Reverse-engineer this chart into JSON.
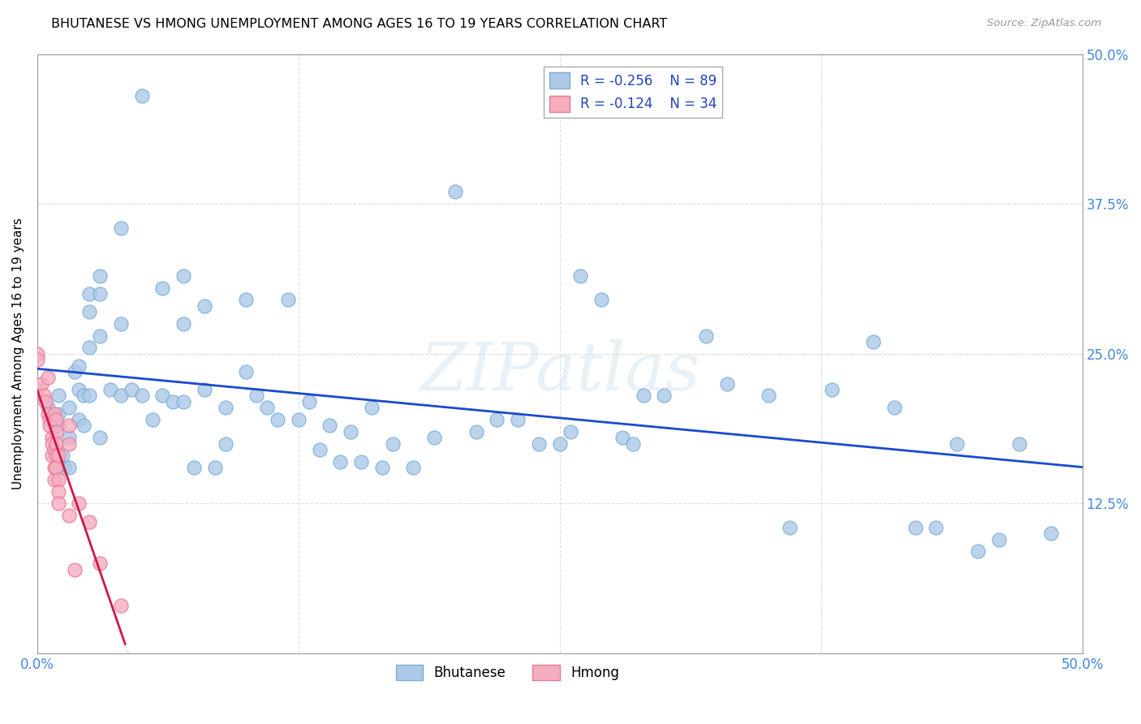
{
  "title": "BHUTANESE VS HMONG UNEMPLOYMENT AMONG AGES 16 TO 19 YEARS CORRELATION CHART",
  "source": "Source: ZipAtlas.com",
  "ylabel": "Unemployment Among Ages 16 to 19 years",
  "xlim": [
    0.0,
    0.5
  ],
  "ylim": [
    0.0,
    0.5
  ],
  "xticks": [
    0.0,
    0.125,
    0.25,
    0.375,
    0.5
  ],
  "yticks": [
    0.0,
    0.125,
    0.25,
    0.375,
    0.5
  ],
  "bhutanese_color": "#adc9e8",
  "hmong_color": "#f5adc0",
  "bhutanese_edge": "#7aafd6",
  "hmong_edge": "#e87898",
  "trendline_blue": "#1a4bcc",
  "trendline_pink": "#cc1a44",
  "legend_R_blue": "-0.256",
  "legend_N_blue": "89",
  "legend_R_pink": "-0.124",
  "legend_N_pink": "34",
  "watermark": "ZIPatlas",
  "bhutanese_x": [
    0.005,
    0.008,
    0.01,
    0.01,
    0.01,
    0.012,
    0.013,
    0.015,
    0.015,
    0.015,
    0.018,
    0.02,
    0.02,
    0.02,
    0.022,
    0.022,
    0.025,
    0.025,
    0.025,
    0.025,
    0.03,
    0.03,
    0.03,
    0.03,
    0.035,
    0.04,
    0.04,
    0.04,
    0.045,
    0.05,
    0.05,
    0.055,
    0.06,
    0.06,
    0.065,
    0.07,
    0.07,
    0.07,
    0.075,
    0.08,
    0.08,
    0.085,
    0.09,
    0.09,
    0.1,
    0.1,
    0.105,
    0.11,
    0.115,
    0.12,
    0.125,
    0.13,
    0.135,
    0.14,
    0.145,
    0.15,
    0.155,
    0.16,
    0.165,
    0.17,
    0.18,
    0.19,
    0.2,
    0.21,
    0.22,
    0.23,
    0.24,
    0.25,
    0.255,
    0.26,
    0.27,
    0.28,
    0.285,
    0.29,
    0.3,
    0.32,
    0.33,
    0.35,
    0.36,
    0.38,
    0.4,
    0.41,
    0.42,
    0.43,
    0.44,
    0.45,
    0.46,
    0.47,
    0.485
  ],
  "bhutanese_y": [
    0.205,
    0.195,
    0.2,
    0.215,
    0.19,
    0.165,
    0.155,
    0.18,
    0.155,
    0.205,
    0.235,
    0.24,
    0.22,
    0.195,
    0.215,
    0.19,
    0.3,
    0.285,
    0.255,
    0.215,
    0.315,
    0.3,
    0.265,
    0.18,
    0.22,
    0.355,
    0.275,
    0.215,
    0.22,
    0.465,
    0.215,
    0.195,
    0.305,
    0.215,
    0.21,
    0.315,
    0.275,
    0.21,
    0.155,
    0.22,
    0.29,
    0.155,
    0.175,
    0.205,
    0.235,
    0.295,
    0.215,
    0.205,
    0.195,
    0.295,
    0.195,
    0.21,
    0.17,
    0.19,
    0.16,
    0.185,
    0.16,
    0.205,
    0.155,
    0.175,
    0.155,
    0.18,
    0.385,
    0.185,
    0.195,
    0.195,
    0.175,
    0.175,
    0.185,
    0.315,
    0.295,
    0.18,
    0.175,
    0.215,
    0.215,
    0.265,
    0.225,
    0.215,
    0.105,
    0.22,
    0.26,
    0.205,
    0.105,
    0.105,
    0.175,
    0.085,
    0.095,
    0.175,
    0.1
  ],
  "hmong_x": [
    0.0,
    0.0,
    0.0,
    0.002,
    0.003,
    0.004,
    0.005,
    0.005,
    0.006,
    0.006,
    0.007,
    0.007,
    0.007,
    0.008,
    0.008,
    0.008,
    0.008,
    0.009,
    0.009,
    0.009,
    0.009,
    0.009,
    0.01,
    0.01,
    0.01,
    0.01,
    0.015,
    0.015,
    0.015,
    0.018,
    0.02,
    0.025,
    0.03,
    0.04
  ],
  "hmong_y": [
    0.25,
    0.22,
    0.245,
    0.225,
    0.215,
    0.21,
    0.23,
    0.2,
    0.195,
    0.19,
    0.18,
    0.175,
    0.165,
    0.2,
    0.17,
    0.155,
    0.145,
    0.195,
    0.185,
    0.175,
    0.165,
    0.155,
    0.165,
    0.145,
    0.135,
    0.125,
    0.19,
    0.175,
    0.115,
    0.07,
    0.125,
    0.11,
    0.075,
    0.04
  ]
}
